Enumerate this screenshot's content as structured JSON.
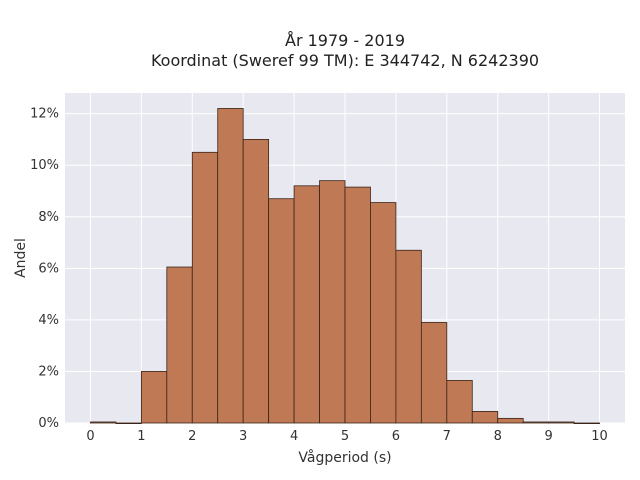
{
  "chart_data": {
    "type": "bar",
    "title_line1": "År 1979 - 2019",
    "title_line2": "Koordinat (Sweref 99 TM): E 344742, N 6242390",
    "xlabel": "Vågperiod (s)",
    "ylabel": "Andel",
    "bin_width": 0.5,
    "bin_starts": [
      0,
      0.5,
      1,
      1.5,
      2,
      2.5,
      3,
      3.5,
      4,
      4.5,
      5,
      5.5,
      6,
      6.5,
      7,
      7.5,
      8,
      8.5,
      9,
      9.5
    ],
    "values": [
      0.04,
      0,
      2.0,
      6.05,
      10.5,
      12.2,
      11.0,
      8.7,
      9.2,
      9.4,
      9.15,
      8.55,
      6.7,
      3.9,
      1.65,
      0.45,
      0.18,
      0.04,
      0.04,
      0
    ],
    "xlim": [
      -0.5,
      10.5
    ],
    "ylim": [
      0,
      12.8
    ],
    "x_ticks": [
      0,
      1,
      2,
      3,
      4,
      5,
      6,
      7,
      8,
      9,
      10
    ],
    "y_ticks": [
      0,
      2,
      4,
      6,
      8,
      10,
      12
    ],
    "y_tick_suffix": "%",
    "grid": true,
    "colors": {
      "bar_fill": "#bf7a55",
      "bar_edge": "#3a2418",
      "plot_bg": "#e8e8f0",
      "grid": "#ffffff"
    }
  }
}
